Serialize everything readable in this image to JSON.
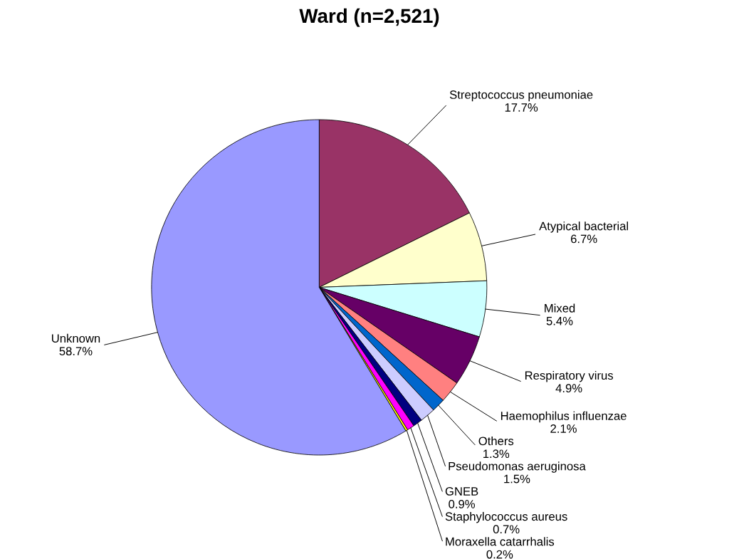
{
  "chart_data": {
    "type": "pie",
    "title": "Ward (n=2,521)",
    "categories": [
      "Streptococcus pneumoniae",
      "Atypical bacterial",
      "Mixed",
      "Respiratory virus",
      "Haemophilus influenzae",
      "Others",
      "Pseudomonas aeruginosa",
      "GNEB",
      "Staphylococcus aureus",
      "Moraxella catarrhalis",
      "Unknown"
    ],
    "values": [
      17.7,
      6.7,
      5.4,
      4.9,
      2.1,
      1.3,
      1.5,
      0.9,
      0.7,
      0.2,
      58.7
    ],
    "value_labels": [
      "17.7%",
      "6.7%",
      "5.4%",
      "4.9%",
      "2.1%",
      "1.3%",
      "1.5%",
      "0.9%",
      "0.7%",
      "0.2%",
      "58.7%"
    ],
    "colors": [
      "#993366",
      "#ffffcc",
      "#ccffff",
      "#660066",
      "#ff8080",
      "#0066cc",
      "#ccccff",
      "#000080",
      "#ff00ff",
      "#ffff00",
      "#9999ff"
    ],
    "legend": false
  }
}
